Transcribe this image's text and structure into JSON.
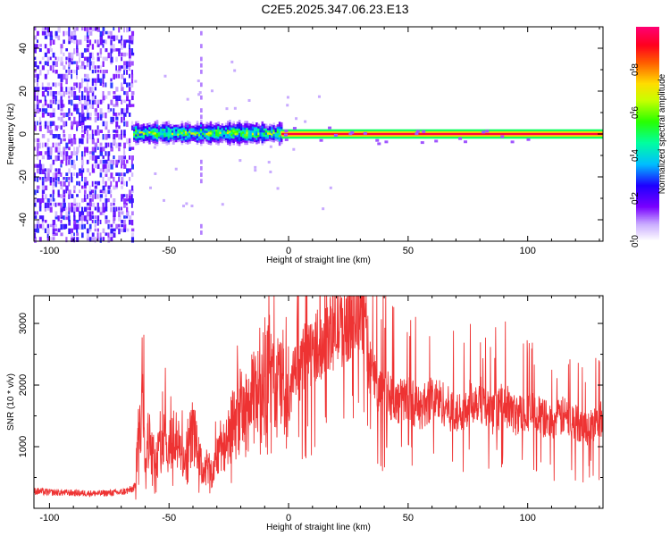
{
  "figure": {
    "title": "C2E5.2025.347.06.23.E13"
  },
  "chart_data": [
    {
      "type": "heatmap",
      "xlabel": "Height of straight line (km)",
      "ylabel": "Frequency (Hz)",
      "xlim": [
        -106.5,
        131.5
      ],
      "ylim": [
        -50,
        50
      ],
      "xticks": [
        -100,
        -50,
        0,
        50,
        100
      ],
      "yticks": [
        40,
        20,
        0,
        -20,
        -40
      ],
      "xtick_labels": [
        "-100",
        "-50",
        "0",
        "50",
        "100"
      ],
      "ytick_labels": [
        "40",
        "20",
        "0",
        "-20",
        "-40"
      ],
      "colorbar": {
        "label": "Normalized spectral amplitude",
        "range": [
          0,
          1
        ],
        "ticks": [
          0.0,
          0.2,
          0.4,
          0.6,
          0.8
        ],
        "tick_labels": [
          "0.0",
          "0.2",
          "0.4",
          "0.6",
          "0.8"
        ],
        "colormap": "rainbow (white-violet-blue-cyan-green-yellow-red-magenta)"
      },
      "grid": false,
      "regions": [
        {
          "x_range": [
            -106.5,
            -65
          ],
          "description": "broadband noise",
          "amplitude": 0.15
        },
        {
          "x_range": [
            -65,
            -3
          ],
          "description": "narrow band near 0 Hz, width ~8 Hz",
          "amplitude": 0.55
        },
        {
          "x_range": [
            -3,
            131.5
          ],
          "description": "narrow line at ~0 Hz",
          "amplitude": 0.95
        },
        {
          "x_range": [
            -37,
            -36
          ],
          "description": "faint vertical streak",
          "amplitude": 0.1
        }
      ]
    },
    {
      "type": "line",
      "xlabel": "Height of straight line (km)",
      "ylabel": "SNR (10 * v/v)",
      "xlim": [
        -106.5,
        131.5
      ],
      "ylim": [
        0,
        3450
      ],
      "xticks": [
        -100,
        -50,
        0,
        50,
        100
      ],
      "yticks": [
        1000,
        2000,
        3000
      ],
      "xtick_labels": [
        "-100",
        "-50",
        "0",
        "50",
        "100"
      ],
      "ytick_labels": [
        "1000",
        "2000",
        "3000"
      ],
      "grid": false,
      "series": [
        {
          "color": "#ee3333",
          "x": [
            -106,
            -100,
            -90,
            -80,
            -70,
            -66,
            -64,
            -63,
            -62,
            -61,
            -60,
            -58,
            -56,
            -54,
            -52,
            -50,
            -48,
            -46,
            -44,
            -42,
            -40,
            -38,
            -36,
            -34,
            -32,
            -30,
            -28,
            -26,
            -24,
            -22,
            -20,
            -18,
            -16,
            -14,
            -12,
            -10,
            -8,
            -6,
            -4,
            -2,
            0,
            2,
            4,
            6,
            8,
            10,
            12,
            14,
            16,
            18,
            20,
            22,
            24,
            26,
            28,
            30,
            32,
            34,
            36,
            38,
            40,
            45,
            50,
            55,
            60,
            65,
            70,
            75,
            80,
            85,
            90,
            95,
            100,
            105,
            110,
            115,
            120,
            125,
            131
          ],
          "y": [
            280,
            260,
            250,
            240,
            260,
            300,
            350,
            1100,
            1200,
            2300,
            900,
            1100,
            700,
            900,
            1300,
            900,
            1200,
            1000,
            800,
            900,
            1300,
            900,
            600,
            700,
            500,
            900,
            1100,
            1000,
            1300,
            1400,
            1600,
            1500,
            1700,
            1800,
            2100,
            2000,
            2200,
            1900,
            2000,
            2100,
            1400,
            2300,
            2000,
            2400,
            2600,
            2500,
            2700,
            2600,
            2900,
            2800,
            3000,
            2900,
            3000,
            3100,
            3000,
            3200,
            3050,
            2300,
            2100,
            1900,
            2000,
            1700,
            1800,
            1600,
            1800,
            1700,
            1500,
            1700,
            1800,
            1500,
            1700,
            1500,
            1600,
            1500,
            1400,
            1500,
            1400,
            1300,
            1450
          ],
          "noise_amplitude": "high-frequency jitter of roughly ±15-40% around the trend"
        }
      ]
    }
  ]
}
